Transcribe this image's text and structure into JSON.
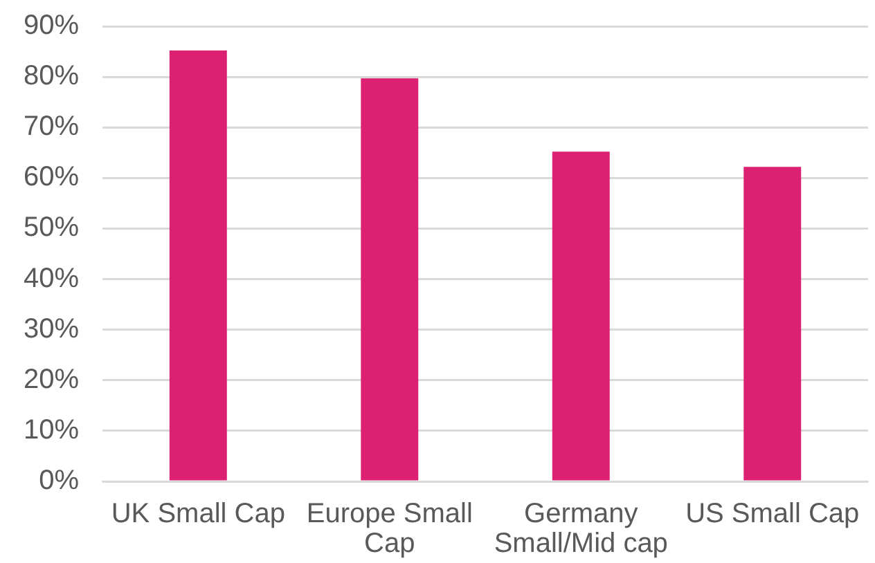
{
  "chart_data": {
    "type": "bar",
    "categories": [
      "UK Small Cap",
      "Europe Small Cap",
      "Germany Small/Mid cap",
      "US Small Cap"
    ],
    "values": [
      85.2,
      79.7,
      65.2,
      62.2
    ],
    "color": "#dc2173",
    "ylim": [
      0,
      90
    ],
    "yticks": [
      {
        "value": 0,
        "label": "0%"
      },
      {
        "value": 10,
        "label": "10%"
      },
      {
        "value": 20,
        "label": "20%"
      },
      {
        "value": 30,
        "label": "30%"
      },
      {
        "value": 40,
        "label": "40%"
      },
      {
        "value": 50,
        "label": "50%"
      },
      {
        "value": 60,
        "label": "60%"
      },
      {
        "value": 70,
        "label": "70%"
      },
      {
        "value": 80,
        "label": "80%"
      },
      {
        "value": 90,
        "label": "90%"
      }
    ],
    "grid": "y",
    "legend": false
  }
}
